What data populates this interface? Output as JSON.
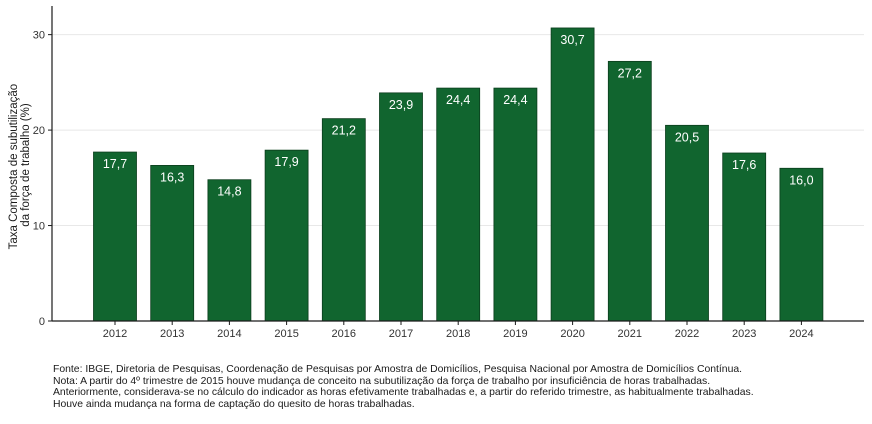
{
  "chart_data": {
    "type": "bar",
    "categories": [
      "2012",
      "2013",
      "2014",
      "2015",
      "2016",
      "2017",
      "2018",
      "2019",
      "2020",
      "2021",
      "2022",
      "2023",
      "2024"
    ],
    "values": [
      17.7,
      16.3,
      14.8,
      17.9,
      21.2,
      23.9,
      24.4,
      24.4,
      30.7,
      27.2,
      20.5,
      17.6,
      16.0
    ],
    "value_labels": [
      "17,7",
      "16,3",
      "14,8",
      "17,9",
      "21,2",
      "23,9",
      "24,4",
      "24,4",
      "30,7",
      "27,2",
      "20,5",
      "17,6",
      "16,0"
    ],
    "ylabel_lines": [
      "Taxa Composta de subutilização",
      "da força de trabalho (%)"
    ],
    "yticks": [
      0,
      10,
      20,
      30
    ],
    "ytick_labels": [
      "0",
      "10",
      "20",
      "30"
    ],
    "ylim": [
      0,
      33
    ],
    "grid": "horizontal",
    "bar_color": "#11652f"
  },
  "footnote": {
    "source": "Fonte: IBGE, Diretoria de Pesquisas, Coordenação de Pesquisas por Amostra de Domicílios, Pesquisa Nacional por Amostra de Domicílios Contínua.",
    "note_1": "Nota: A partir do 4º trimestre de 2015 houve mudança de conceito na subutilização da força de trabalho por insuficiência de horas trabalhadas.",
    "note_2": "Anteriormente, considerava-se no cálculo do indicador as horas efetivamente trabalhadas e, a partir do referido trimestre, as habitualmente trabalhadas.",
    "note_3": "Houve ainda mudança na forma de captação do quesito de horas trabalhadas."
  }
}
